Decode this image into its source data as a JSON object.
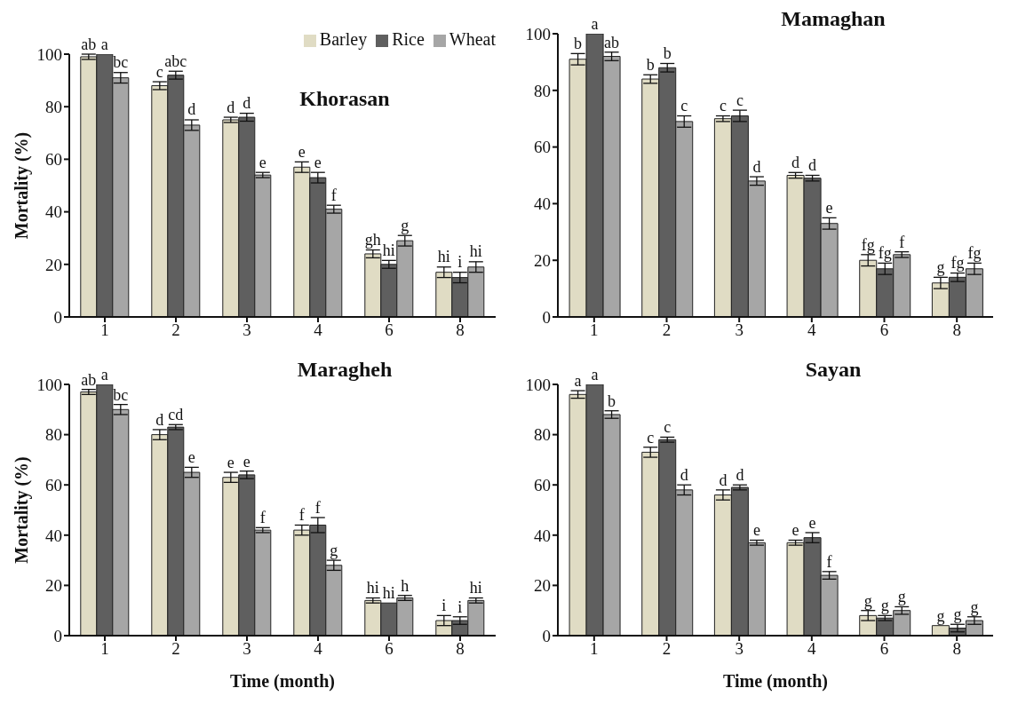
{
  "chart_data": [
    {
      "type": "bar",
      "title": "Khorasan",
      "ylabel": "Mortality (%)",
      "categories": [
        "1",
        "2",
        "3",
        "4",
        "6",
        "8"
      ],
      "ylim": [
        0,
        100
      ],
      "yticks": [
        0,
        20,
        40,
        60,
        80,
        100
      ],
      "grid": false,
      "legend": "top right",
      "series": [
        {
          "name": "Barley",
          "color": "#e0dcc4",
          "values": [
            99,
            88,
            75,
            57,
            24,
            17
          ],
          "errors": [
            1,
            1.5,
            1,
            2,
            1.5,
            2
          ],
          "value_labels": [
            "ab",
            "c",
            "d",
            "e",
            "gh",
            "hi"
          ]
        },
        {
          "name": "Rice",
          "color": "#5f5f5f",
          "values": [
            100,
            92,
            76,
            53,
            20,
            15
          ],
          "errors": [
            null,
            1.5,
            1.5,
            2,
            1.5,
            2
          ],
          "value_labels": [
            "a",
            "abc",
            "d",
            "e",
            "hi",
            "i"
          ]
        },
        {
          "name": "Wheat",
          "color": "#a6a6a6",
          "values": [
            91,
            73,
            54,
            41,
            29,
            19
          ],
          "errors": [
            2,
            2,
            1,
            1.5,
            2,
            2
          ],
          "value_labels": [
            "bc",
            "d",
            "e",
            "f",
            "g",
            "hi"
          ]
        }
      ]
    },
    {
      "type": "bar",
      "title": "Mamaghan",
      "categories": [
        "1",
        "2",
        "3",
        "4",
        "6",
        "8"
      ],
      "ylim": [
        0,
        100
      ],
      "yticks": [
        0,
        20,
        40,
        60,
        80,
        100
      ],
      "grid": false,
      "legend": false,
      "series": [
        {
          "color": "#e0dcc4",
          "values": [
            91,
            84,
            70,
            50,
            20,
            12
          ],
          "errors": [
            2,
            1.5,
            1,
            1,
            2,
            2
          ],
          "value_labels": [
            "b",
            "b",
            "c",
            "d",
            "fg",
            "g"
          ]
        },
        {
          "color": "#5f5f5f",
          "values": [
            100,
            88,
            71,
            49,
            17,
            14
          ],
          "errors": [
            null,
            1.5,
            2,
            1,
            2,
            1.5
          ],
          "value_labels": [
            "a",
            "b",
            "c",
            "d",
            "fg",
            "fg"
          ]
        },
        {
          "color": "#a6a6a6",
          "values": [
            92,
            69,
            48,
            33,
            22,
            17
          ],
          "errors": [
            1.5,
            2,
            1.5,
            2,
            1,
            2
          ],
          "value_labels": [
            "ab",
            "c",
            "d",
            "e",
            "f",
            "fg"
          ]
        }
      ]
    },
    {
      "type": "bar",
      "title": "Maragheh",
      "ylabel": "Mortality (%)",
      "xlabel": "Time (month)",
      "categories": [
        "1",
        "2",
        "3",
        "4",
        "6",
        "8"
      ],
      "ylim": [
        0,
        100
      ],
      "yticks": [
        0,
        20,
        40,
        60,
        80,
        100
      ],
      "grid": false,
      "legend": false,
      "series": [
        {
          "color": "#e0dcc4",
          "values": [
            97,
            80,
            63,
            42,
            14,
            6
          ],
          "errors": [
            1,
            2,
            2,
            2,
            1,
            2
          ],
          "value_labels": [
            "ab",
            "d",
            "e",
            "f",
            "hi",
            "i"
          ]
        },
        {
          "color": "#5f5f5f",
          "values": [
            100,
            83,
            64,
            44,
            13,
            6
          ],
          "errors": [
            null,
            1,
            1.5,
            3,
            null,
            1.5
          ],
          "value_labels": [
            "a",
            "cd",
            "e",
            "f",
            "hi",
            "i"
          ]
        },
        {
          "color": "#a6a6a6",
          "values": [
            90,
            65,
            42,
            28,
            15,
            14
          ],
          "errors": [
            2,
            2,
            1,
            2,
            1,
            1
          ],
          "value_labels": [
            "bc",
            "e",
            "f",
            "g",
            "h",
            "hi"
          ]
        }
      ]
    },
    {
      "type": "bar",
      "title": "Sayan",
      "xlabel": "Time (month)",
      "categories": [
        "1",
        "2",
        "3",
        "4",
        "6",
        "8"
      ],
      "ylim": [
        0,
        100
      ],
      "yticks": [
        0,
        20,
        40,
        60,
        80,
        100
      ],
      "grid": false,
      "legend": false,
      "series": [
        {
          "color": "#e0dcc4",
          "values": [
            96,
            73,
            56,
            37,
            8,
            4
          ],
          "errors": [
            1.5,
            2,
            2,
            1,
            2,
            null
          ],
          "value_labels": [
            "a",
            "c",
            "d",
            "e",
            "g",
            "g"
          ]
        },
        {
          "color": "#5f5f5f",
          "values": [
            100,
            78,
            59,
            39,
            7,
            3
          ],
          "errors": [
            null,
            1,
            1,
            2,
            1,
            1.5
          ],
          "value_labels": [
            "a",
            "c",
            "d",
            "e",
            "g",
            "g"
          ]
        },
        {
          "color": "#a6a6a6",
          "values": [
            88,
            58,
            37,
            24,
            10,
            6
          ],
          "errors": [
            1.5,
            2,
            1,
            1.5,
            1.5,
            1.5
          ],
          "value_labels": [
            "b",
            "d",
            "e",
            "f",
            "g",
            "g"
          ]
        }
      ]
    }
  ]
}
